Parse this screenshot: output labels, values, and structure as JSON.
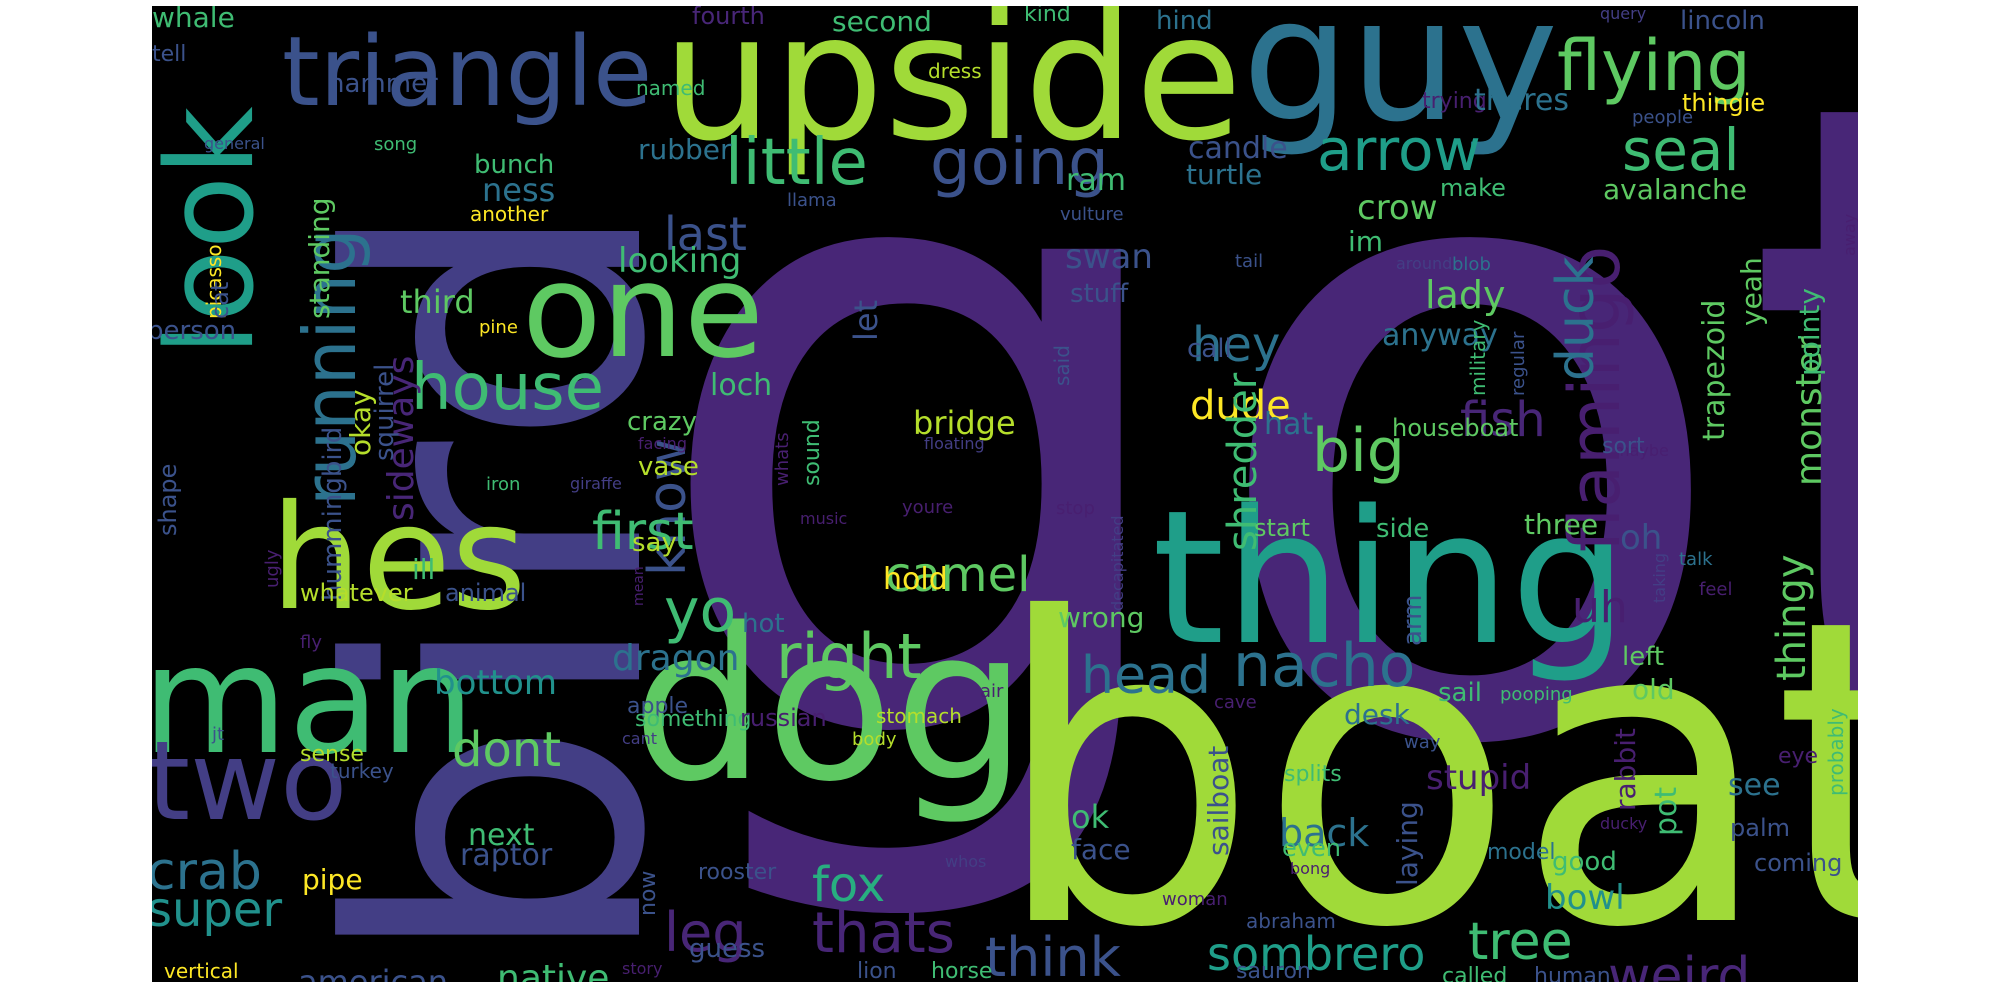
{
  "words": [
    {
      "text": "got",
      "color": "#482677"
    },
    {
      "text": "boat",
      "color": "#a0da39"
    },
    {
      "text": "bird",
      "color": "#433e85"
    },
    {
      "text": "dog",
      "color": "#5ec962"
    },
    {
      "text": "upside",
      "color": "#a0da39"
    },
    {
      "text": "guy",
      "color": "#2c728e"
    },
    {
      "text": "thing",
      "color": "#1f9e89"
    },
    {
      "text": "man",
      "color": "#3fbc73"
    },
    {
      "text": "hes",
      "color": "#a0da39"
    },
    {
      "text": "one",
      "color": "#5ec962"
    },
    {
      "text": "look",
      "color": "#1f9e89"
    },
    {
      "text": "two",
      "color": "#433e85"
    },
    {
      "text": "triangle",
      "color": "#3b528b"
    },
    {
      "text": "flying",
      "color": "#5ec962"
    },
    {
      "text": "flamingo",
      "color": "#481f70"
    },
    {
      "text": "running",
      "color": "#2c728e"
    },
    {
      "text": "little",
      "color": "#3fbc73"
    },
    {
      "text": "going",
      "color": "#3b528b"
    },
    {
      "text": "arrow",
      "color": "#1f9e89"
    },
    {
      "text": "seal",
      "color": "#3fbc73"
    },
    {
      "text": "house",
      "color": "#3fbc73"
    },
    {
      "text": "big",
      "color": "#5ec962"
    },
    {
      "text": "nacho",
      "color": "#2c728e"
    },
    {
      "text": "right",
      "color": "#5ec962"
    },
    {
      "text": "head",
      "color": "#2c728e"
    },
    {
      "text": "crab",
      "color": "#2c728e"
    },
    {
      "text": "super",
      "color": "#21918c"
    },
    {
      "text": "leg",
      "color": "#482677"
    },
    {
      "text": "fox",
      "color": "#28ae80"
    },
    {
      "text": "thats",
      "color": "#482677"
    },
    {
      "text": "think",
      "color": "#3b528b"
    },
    {
      "text": "sombrero",
      "color": "#1f9e89"
    },
    {
      "text": "tree",
      "color": "#3fbc73"
    },
    {
      "text": "weird",
      "color": "#482677"
    },
    {
      "text": "yo",
      "color": "#3fbc73"
    },
    {
      "text": "know",
      "color": "#3b528b"
    },
    {
      "text": "first",
      "color": "#3fbc73"
    },
    {
      "text": "camel",
      "color": "#5ec962"
    },
    {
      "text": "hey",
      "color": "#2c728e"
    },
    {
      "text": "fish",
      "color": "#482677"
    },
    {
      "text": "dude",
      "color": "#fde725"
    },
    {
      "text": "dont",
      "color": "#5ec962"
    },
    {
      "text": "uh",
      "color": "#481f70"
    },
    {
      "text": "duck",
      "color": "#2c728e"
    },
    {
      "text": "shredder",
      "color": "#3fbc73"
    },
    {
      "text": "sideways",
      "color": "#482677"
    },
    {
      "text": "monster",
      "color": "#5ec962"
    },
    {
      "text": "thingy",
      "color": "#5ec962"
    },
    {
      "text": "last",
      "color": "#3b528b"
    },
    {
      "text": "looking",
      "color": "#3fbc73"
    },
    {
      "text": "bottom",
      "color": "#21918c"
    },
    {
      "text": "dragon",
      "color": "#2c728e"
    },
    {
      "text": "american",
      "color": "#3b528b"
    },
    {
      "text": "native",
      "color": "#3fbc73"
    },
    {
      "text": "back",
      "color": "#2c728e"
    },
    {
      "text": "bowl",
      "color": "#21918c"
    },
    {
      "text": "lady",
      "color": "#5ec962"
    },
    {
      "text": "bridge",
      "color": "#b5de2b"
    },
    {
      "text": "hold",
      "color": "#fde725"
    },
    {
      "text": "swan",
      "color": "#3b528b"
    },
    {
      "text": "whale",
      "color": "#3fbc73"
    },
    {
      "text": "fourth",
      "color": "#482677"
    },
    {
      "text": "second",
      "color": "#3fbc73"
    },
    {
      "text": "kind",
      "color": "#3fbc73"
    },
    {
      "text": "hind",
      "color": "#2c728e"
    },
    {
      "text": "lincoln",
      "color": "#3b528b"
    },
    {
      "text": "tell",
      "color": "#3b528b"
    },
    {
      "text": "hammer",
      "color": "#3b528b"
    },
    {
      "text": "named",
      "color": "#3fbc73"
    },
    {
      "text": "dress",
      "color": "#b5de2b"
    },
    {
      "text": "trying",
      "color": "#481f70"
    },
    {
      "text": "theres",
      "color": "#2c728e"
    },
    {
      "text": "thingie",
      "color": "#fde725"
    },
    {
      "text": "query",
      "color": "#433e85"
    },
    {
      "text": "people",
      "color": "#3b528b"
    },
    {
      "text": "general",
      "color": "#3b528b"
    },
    {
      "text": "song",
      "color": "#3fbc73"
    },
    {
      "text": "rubber",
      "color": "#2c728e"
    },
    {
      "text": "candle",
      "color": "#3b528b"
    },
    {
      "text": "turtle",
      "color": "#2c728e"
    },
    {
      "text": "bunch",
      "color": "#3fbc73"
    },
    {
      "text": "ness",
      "color": "#2c728e"
    },
    {
      "text": "another",
      "color": "#fde725"
    },
    {
      "text": "ram",
      "color": "#3fbc73"
    },
    {
      "text": "make",
      "color": "#3fbc73"
    },
    {
      "text": "avalanche",
      "color": "#5ec962"
    },
    {
      "text": "crow",
      "color": "#5ec962"
    },
    {
      "text": "llama",
      "color": "#3b528b"
    },
    {
      "text": "vulture",
      "color": "#3b528b"
    },
    {
      "text": "standing",
      "color": "#5ec962"
    },
    {
      "text": "picasso",
      "color": "#fde725"
    },
    {
      "text": "cat",
      "color": "#3b528b"
    },
    {
      "text": "im",
      "color": "#3fbc73"
    },
    {
      "text": "blob",
      "color": "#2c728e"
    },
    {
      "text": "around",
      "color": "#433e85"
    },
    {
      "text": "away",
      "color": "#481f70"
    },
    {
      "text": "yeah",
      "color": "#5ec962"
    },
    {
      "text": "pointy",
      "color": "#3fbc73"
    },
    {
      "text": "tail",
      "color": "#3b528b"
    },
    {
      "text": "person",
      "color": "#3b528b"
    },
    {
      "text": "third",
      "color": "#5ec962"
    },
    {
      "text": "let",
      "color": "#3b528b"
    },
    {
      "text": "stuff",
      "color": "#3b528b"
    },
    {
      "text": "call",
      "color": "#3b528b"
    },
    {
      "text": "anyway",
      "color": "#2c728e"
    },
    {
      "text": "trapezoid",
      "color": "#5ec962"
    },
    {
      "text": "pine",
      "color": "#fde725"
    },
    {
      "text": "loch",
      "color": "#3fbc73"
    },
    {
      "text": "military",
      "color": "#3fbc73"
    },
    {
      "text": "regular",
      "color": "#3b528b"
    },
    {
      "text": "said",
      "color": "#3b528b"
    },
    {
      "text": "squirrel",
      "color": "#3b528b"
    },
    {
      "text": "okay",
      "color": "#b5de2b"
    },
    {
      "text": "crazy",
      "color": "#5ec962"
    },
    {
      "text": "hat",
      "color": "#2c728e"
    },
    {
      "text": "houseboat",
      "color": "#5ec962"
    },
    {
      "text": "hummingbird",
      "color": "#3b528b"
    },
    {
      "text": "facing",
      "color": "#481f70"
    },
    {
      "text": "floating",
      "color": "#433e85"
    },
    {
      "text": "maybe",
      "color": "#481f70"
    },
    {
      "text": "sort",
      "color": "#3b528b"
    },
    {
      "text": "shape",
      "color": "#3b528b"
    },
    {
      "text": "vase",
      "color": "#b5de2b"
    },
    {
      "text": "whats",
      "color": "#481f70"
    },
    {
      "text": "sound",
      "color": "#3fbc73"
    },
    {
      "text": "decapitated",
      "color": "#433e85"
    },
    {
      "text": "iron",
      "color": "#3fbc73"
    },
    {
      "text": "giraffe",
      "color": "#433e85"
    },
    {
      "text": "music",
      "color": "#481f70"
    },
    {
      "text": "youre",
      "color": "#481f70"
    },
    {
      "text": "stop",
      "color": "#481f70"
    },
    {
      "text": "start",
      "color": "#5ec962"
    },
    {
      "text": "side",
      "color": "#3fbc73"
    },
    {
      "text": "three",
      "color": "#5ec962"
    },
    {
      "text": "oh",
      "color": "#3b528b"
    },
    {
      "text": "say",
      "color": "#b5de2b"
    },
    {
      "text": "ugly",
      "color": "#481f70"
    },
    {
      "text": "ill",
      "color": "#3fbc73"
    },
    {
      "text": "talk",
      "color": "#2c728e"
    },
    {
      "text": "whatever",
      "color": "#b5de2b"
    },
    {
      "text": "animal",
      "color": "#3b528b"
    },
    {
      "text": "mean",
      "color": "#481f70"
    },
    {
      "text": "taking",
      "color": "#433e85"
    },
    {
      "text": "feel",
      "color": "#481f70"
    },
    {
      "text": "hot",
      "color": "#2c728e"
    },
    {
      "text": "wrong",
      "color": "#5ec962"
    },
    {
      "text": "arm",
      "color": "#3b528b"
    },
    {
      "text": "left",
      "color": "#5ec962"
    },
    {
      "text": "fly",
      "color": "#481f70"
    },
    {
      "text": "apple",
      "color": "#3b528b"
    },
    {
      "text": "air",
      "color": "#481f70"
    },
    {
      "text": "sail",
      "color": "#3fbc73"
    },
    {
      "text": "pooping",
      "color": "#3fbc73"
    },
    {
      "text": "old",
      "color": "#5ec962"
    },
    {
      "text": "jt",
      "color": "#3b528b"
    },
    {
      "text": "something",
      "color": "#3fbc73"
    },
    {
      "text": "russian",
      "color": "#481f70"
    },
    {
      "text": "stomach",
      "color": "#b5de2b"
    },
    {
      "text": "cave",
      "color": "#481f70"
    },
    {
      "text": "desk",
      "color": "#2c728e"
    },
    {
      "text": "probably",
      "color": "#3fbc73"
    },
    {
      "text": "sense",
      "color": "#b5de2b"
    },
    {
      "text": "cant",
      "color": "#433e85"
    },
    {
      "text": "body",
      "color": "#b5de2b"
    },
    {
      "text": "way",
      "color": "#3b528b"
    },
    {
      "text": "eye",
      "color": "#481f70"
    },
    {
      "text": "turkey",
      "color": "#3b528b"
    },
    {
      "text": "rabbit",
      "color": "#481f70"
    },
    {
      "text": "pot",
      "color": "#3fbc73"
    },
    {
      "text": "see",
      "color": "#2c728e"
    },
    {
      "text": "stupid",
      "color": "#481f70"
    },
    {
      "text": "splits",
      "color": "#3fbc73"
    },
    {
      "text": "palm",
      "color": "#3b528b"
    },
    {
      "text": "next",
      "color": "#3fbc73"
    },
    {
      "text": "raptor",
      "color": "#3b528b"
    },
    {
      "text": "ok",
      "color": "#3fbc73"
    },
    {
      "text": "face",
      "color": "#3b528b"
    },
    {
      "text": "sailboat",
      "color": "#3b528b"
    },
    {
      "text": "laying",
      "color": "#3b528b"
    },
    {
      "text": "even",
      "color": "#3fbc73"
    },
    {
      "text": "ducky",
      "color": "#481f70"
    },
    {
      "text": "whos",
      "color": "#433e85"
    },
    {
      "text": "model",
      "color": "#2c728e"
    },
    {
      "text": "good",
      "color": "#3fbc73"
    },
    {
      "text": "coming",
      "color": "#3b528b"
    },
    {
      "text": "pipe",
      "color": "#fde725"
    },
    {
      "text": "rooster",
      "color": "#3b528b"
    },
    {
      "text": "now",
      "color": "#3b528b"
    },
    {
      "text": "bong",
      "color": "#481f70"
    },
    {
      "text": "woman",
      "color": "#481f70"
    },
    {
      "text": "abraham",
      "color": "#3b528b"
    },
    {
      "text": "guess",
      "color": "#3b528b"
    },
    {
      "text": "story",
      "color": "#481f70"
    },
    {
      "text": "lion",
      "color": "#3b528b"
    },
    {
      "text": "horse",
      "color": "#3fbc73"
    },
    {
      "text": "sauron",
      "color": "#3b528b"
    },
    {
      "text": "called",
      "color": "#3fbc73"
    },
    {
      "text": "human",
      "color": "#3b528b"
    },
    {
      "text": "vertical",
      "color": "#fde725"
    }
  ]
}
